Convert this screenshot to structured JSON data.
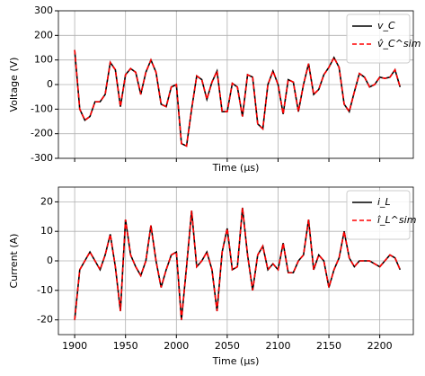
{
  "chart_data": [
    {
      "type": "line",
      "xlabel": "Time (μs)",
      "ylabel": "Voltage (V)",
      "x": [
        1900,
        1905,
        1910,
        1915,
        1920,
        1925,
        1930,
        1935,
        1940,
        1945,
        1950,
        1955,
        1960,
        1965,
        1970,
        1975,
        1980,
        1985,
        1990,
        1995,
        2000,
        2005,
        2010,
        2015,
        2020,
        2025,
        2030,
        2035,
        2040,
        2045,
        2050,
        2055,
        2060,
        2065,
        2070,
        2075,
        2080,
        2085,
        2090,
        2095,
        2100,
        2105,
        2110,
        2115,
        2120,
        2125,
        2130,
        2135,
        2140,
        2145,
        2150,
        2155,
        2160,
        2165,
        2170,
        2175,
        2180,
        2185,
        2190,
        2195,
        2200,
        2205,
        2210,
        2215,
        2220
      ],
      "xlim": [
        1884,
        2233
      ],
      "xticks": [
        1900,
        1950,
        2000,
        2050,
        2100,
        2150,
        2200
      ],
      "ylim": [
        -300,
        300
      ],
      "yticks": [
        -300,
        -200,
        -100,
        0,
        100,
        200,
        300
      ],
      "grid": true,
      "legend": "upper right",
      "series": [
        {
          "name": "v_C",
          "color": "#000000",
          "style": "solid",
          "values": [
            140,
            -100,
            -145,
            -130,
            -70,
            -70,
            -40,
            90,
            60,
            -90,
            40,
            65,
            50,
            -40,
            50,
            100,
            50,
            -80,
            -90,
            -10,
            0,
            -240,
            -250,
            -100,
            35,
            20,
            -60,
            10,
            55,
            -110,
            -110,
            5,
            -10,
            -130,
            40,
            30,
            -160,
            -180,
            0,
            55,
            0,
            -120,
            20,
            10,
            -110,
            0,
            85,
            -40,
            -20,
            40,
            70,
            110,
            70,
            -80,
            -110,
            -30,
            45,
            30,
            -10,
            0,
            30,
            25,
            30,
            60,
            -10
          ]
        },
        {
          "name": "v̂_C^sim",
          "color": "#ff0000",
          "style": "dashed",
          "values": [
            140,
            -100,
            -145,
            -130,
            -70,
            -70,
            -40,
            90,
            60,
            -90,
            40,
            65,
            50,
            -40,
            50,
            100,
            50,
            -80,
            -90,
            -10,
            0,
            -240,
            -250,
            -100,
            35,
            20,
            -60,
            10,
            55,
            -110,
            -110,
            5,
            -10,
            -130,
            40,
            30,
            -160,
            -180,
            0,
            55,
            0,
            -120,
            20,
            10,
            -110,
            0,
            85,
            -40,
            -20,
            40,
            70,
            110,
            70,
            -80,
            -110,
            -30,
            45,
            30,
            -10,
            0,
            30,
            25,
            30,
            60,
            -10
          ]
        }
      ]
    },
    {
      "type": "line",
      "xlabel": "Time (μs)",
      "ylabel": "Current (A)",
      "x": [
        1900,
        1905,
        1910,
        1915,
        1920,
        1925,
        1930,
        1935,
        1940,
        1945,
        1950,
        1955,
        1960,
        1965,
        1970,
        1975,
        1980,
        1985,
        1990,
        1995,
        2000,
        2005,
        2010,
        2015,
        2020,
        2025,
        2030,
        2035,
        2040,
        2045,
        2050,
        2055,
        2060,
        2065,
        2070,
        2075,
        2080,
        2085,
        2090,
        2095,
        2100,
        2105,
        2110,
        2115,
        2120,
        2125,
        2130,
        2135,
        2140,
        2145,
        2150,
        2155,
        2160,
        2165,
        2170,
        2175,
        2180,
        2185,
        2190,
        2195,
        2200,
        2205,
        2210,
        2215,
        2220
      ],
      "xlim": [
        1884,
        2233
      ],
      "xticks": [
        1900,
        1950,
        2000,
        2050,
        2100,
        2150,
        2200
      ],
      "ylim": [
        -25,
        25
      ],
      "yticks": [
        -20,
        -10,
        0,
        10,
        20
      ],
      "grid": true,
      "legend": "upper right",
      "series": [
        {
          "name": "i_L",
          "color": "#000000",
          "style": "solid",
          "values": [
            -20,
            -3,
            0,
            3,
            0,
            -3,
            2,
            9,
            -2,
            -17,
            14,
            2,
            -2,
            -5,
            0,
            12,
            0,
            -9,
            -3,
            2,
            3,
            -20,
            -2,
            17,
            -2,
            0,
            3,
            -3,
            -17,
            3,
            11,
            -3,
            -2,
            18,
            2,
            -10,
            2,
            5,
            -3,
            -1,
            -3,
            6,
            -4,
            -4,
            0,
            2,
            14,
            -3,
            2,
            0,
            -9,
            -3,
            1,
            10,
            1,
            -2,
            0,
            0,
            0,
            -1,
            -2,
            0,
            2,
            1,
            -3
          ]
        },
        {
          "name": "î_L^sim",
          "color": "#ff0000",
          "style": "dashed",
          "values": [
            -20,
            -3,
            0,
            3,
            0,
            -3,
            2,
            9,
            -2,
            -17,
            14,
            2,
            -2,
            -5,
            0,
            12,
            0,
            -9,
            -3,
            2,
            3,
            -20,
            -2,
            17,
            -2,
            0,
            3,
            -3,
            -17,
            3,
            11,
            -3,
            -2,
            18,
            2,
            -10,
            2,
            5,
            -3,
            -1,
            -3,
            6,
            -4,
            -4,
            0,
            2,
            14,
            -3,
            2,
            0,
            -9,
            -3,
            1,
            10,
            1,
            -2,
            0,
            0,
            0,
            -1,
            -2,
            0,
            2,
            1,
            -3
          ]
        }
      ]
    }
  ]
}
